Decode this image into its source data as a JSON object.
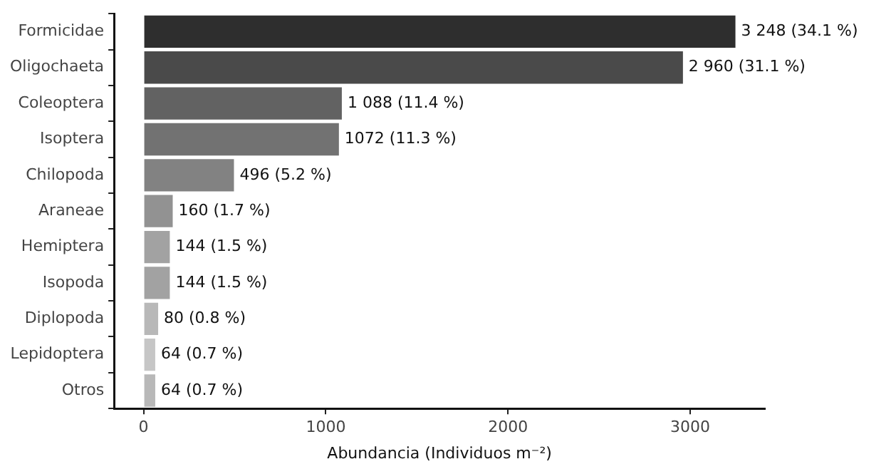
{
  "chart_data": {
    "type": "bar",
    "orientation": "horizontal",
    "xlabel": "Abundancia (Individuos m⁻²)",
    "categories": [
      "Formicidae",
      "Oligochaeta",
      "Coleoptera",
      "Isoptera",
      "Chilopoda",
      "Araneae",
      "Hemiptera",
      "Isopoda",
      "Diplopoda",
      "Lepidoptera",
      "Otros"
    ],
    "values": [
      3248,
      2960,
      1088,
      1072,
      496,
      160,
      144,
      144,
      80,
      64,
      64
    ],
    "colors": [
      "#2e2e2e",
      "#4a4a4a",
      "#626262",
      "#727272",
      "#828282",
      "#929292",
      "#a2a2a2",
      "#a2a2a2",
      "#b8b8b8",
      "#c6c6c6",
      "#b8b8b8"
    ],
    "value_labels": [
      "3 248 (34.1 %)",
      "2 960 (31.1 %)",
      "1 088 (11.4 %)",
      "1072 (11.3 %)",
      "496 (5.2 %)",
      "160 (1.7 %)",
      "144 (1.5 %)",
      "144 (1.5 %)",
      "80 (0.8 %)",
      "64 (0.7 %)",
      "64 (0.7 %)"
    ],
    "xlim": [
      -162,
      3410
    ],
    "xticks": [
      0,
      1000,
      2000,
      3000
    ],
    "grid": false,
    "legend": false
  }
}
